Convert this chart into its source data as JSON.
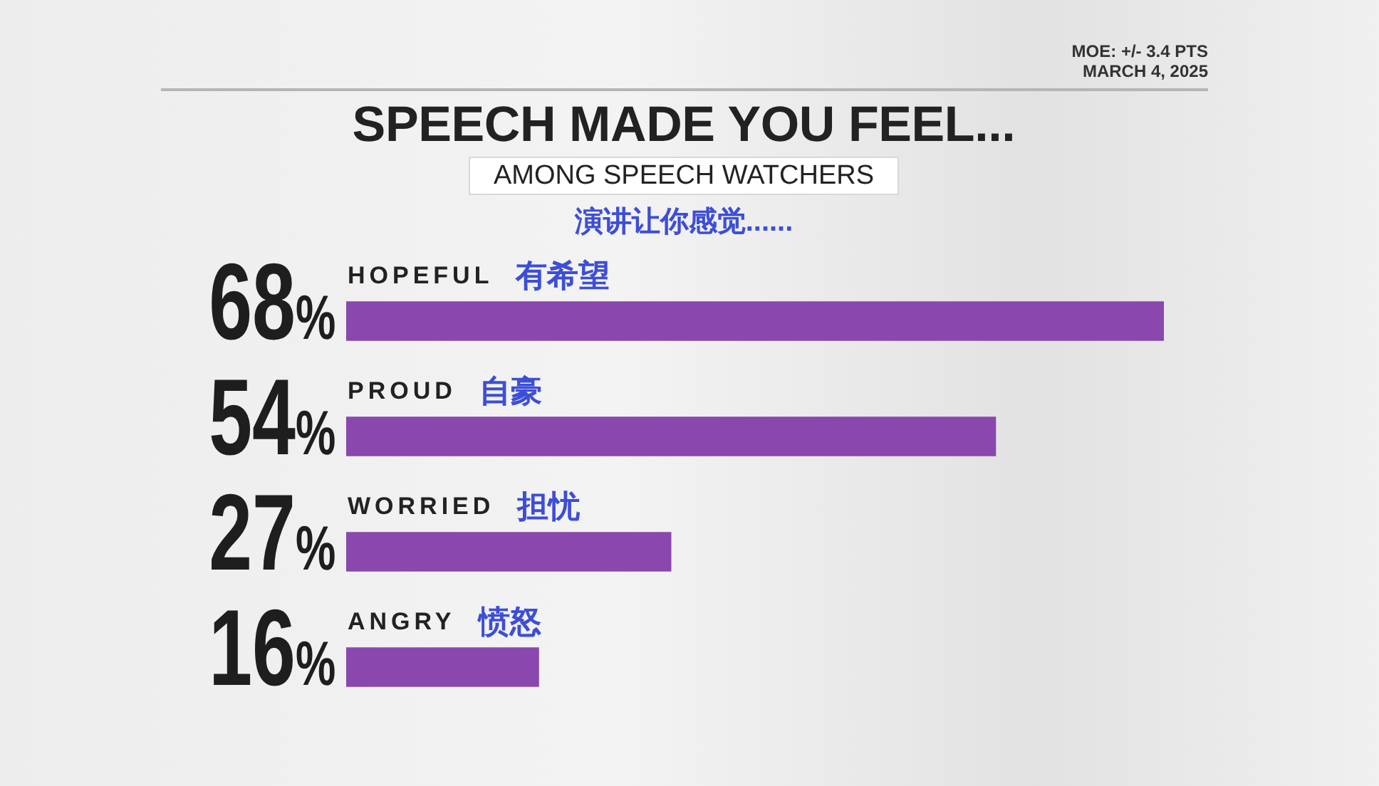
{
  "chart_data": {
    "type": "bar",
    "orientation": "horizontal",
    "title": "SPEECH MADE YOU FEEL...",
    "subtitle": "AMONG SPEECH WATCHERS",
    "categories": [
      "HOPEFUL 有希望",
      "PROUD 自豪",
      "WORRIED 担忧",
      "ANGRY 愤怒"
    ],
    "values": [
      68,
      54,
      27,
      16
    ],
    "value_labels": [
      "68%",
      "54%",
      "27%",
      "16%"
    ],
    "color": "#8a47ad",
    "annotations": [
      "演讲让你感觉......",
      "MOE: +/- 3.4 PTS",
      "MARCH 4, 2025"
    ],
    "tick_labels": "y"
  }
}
